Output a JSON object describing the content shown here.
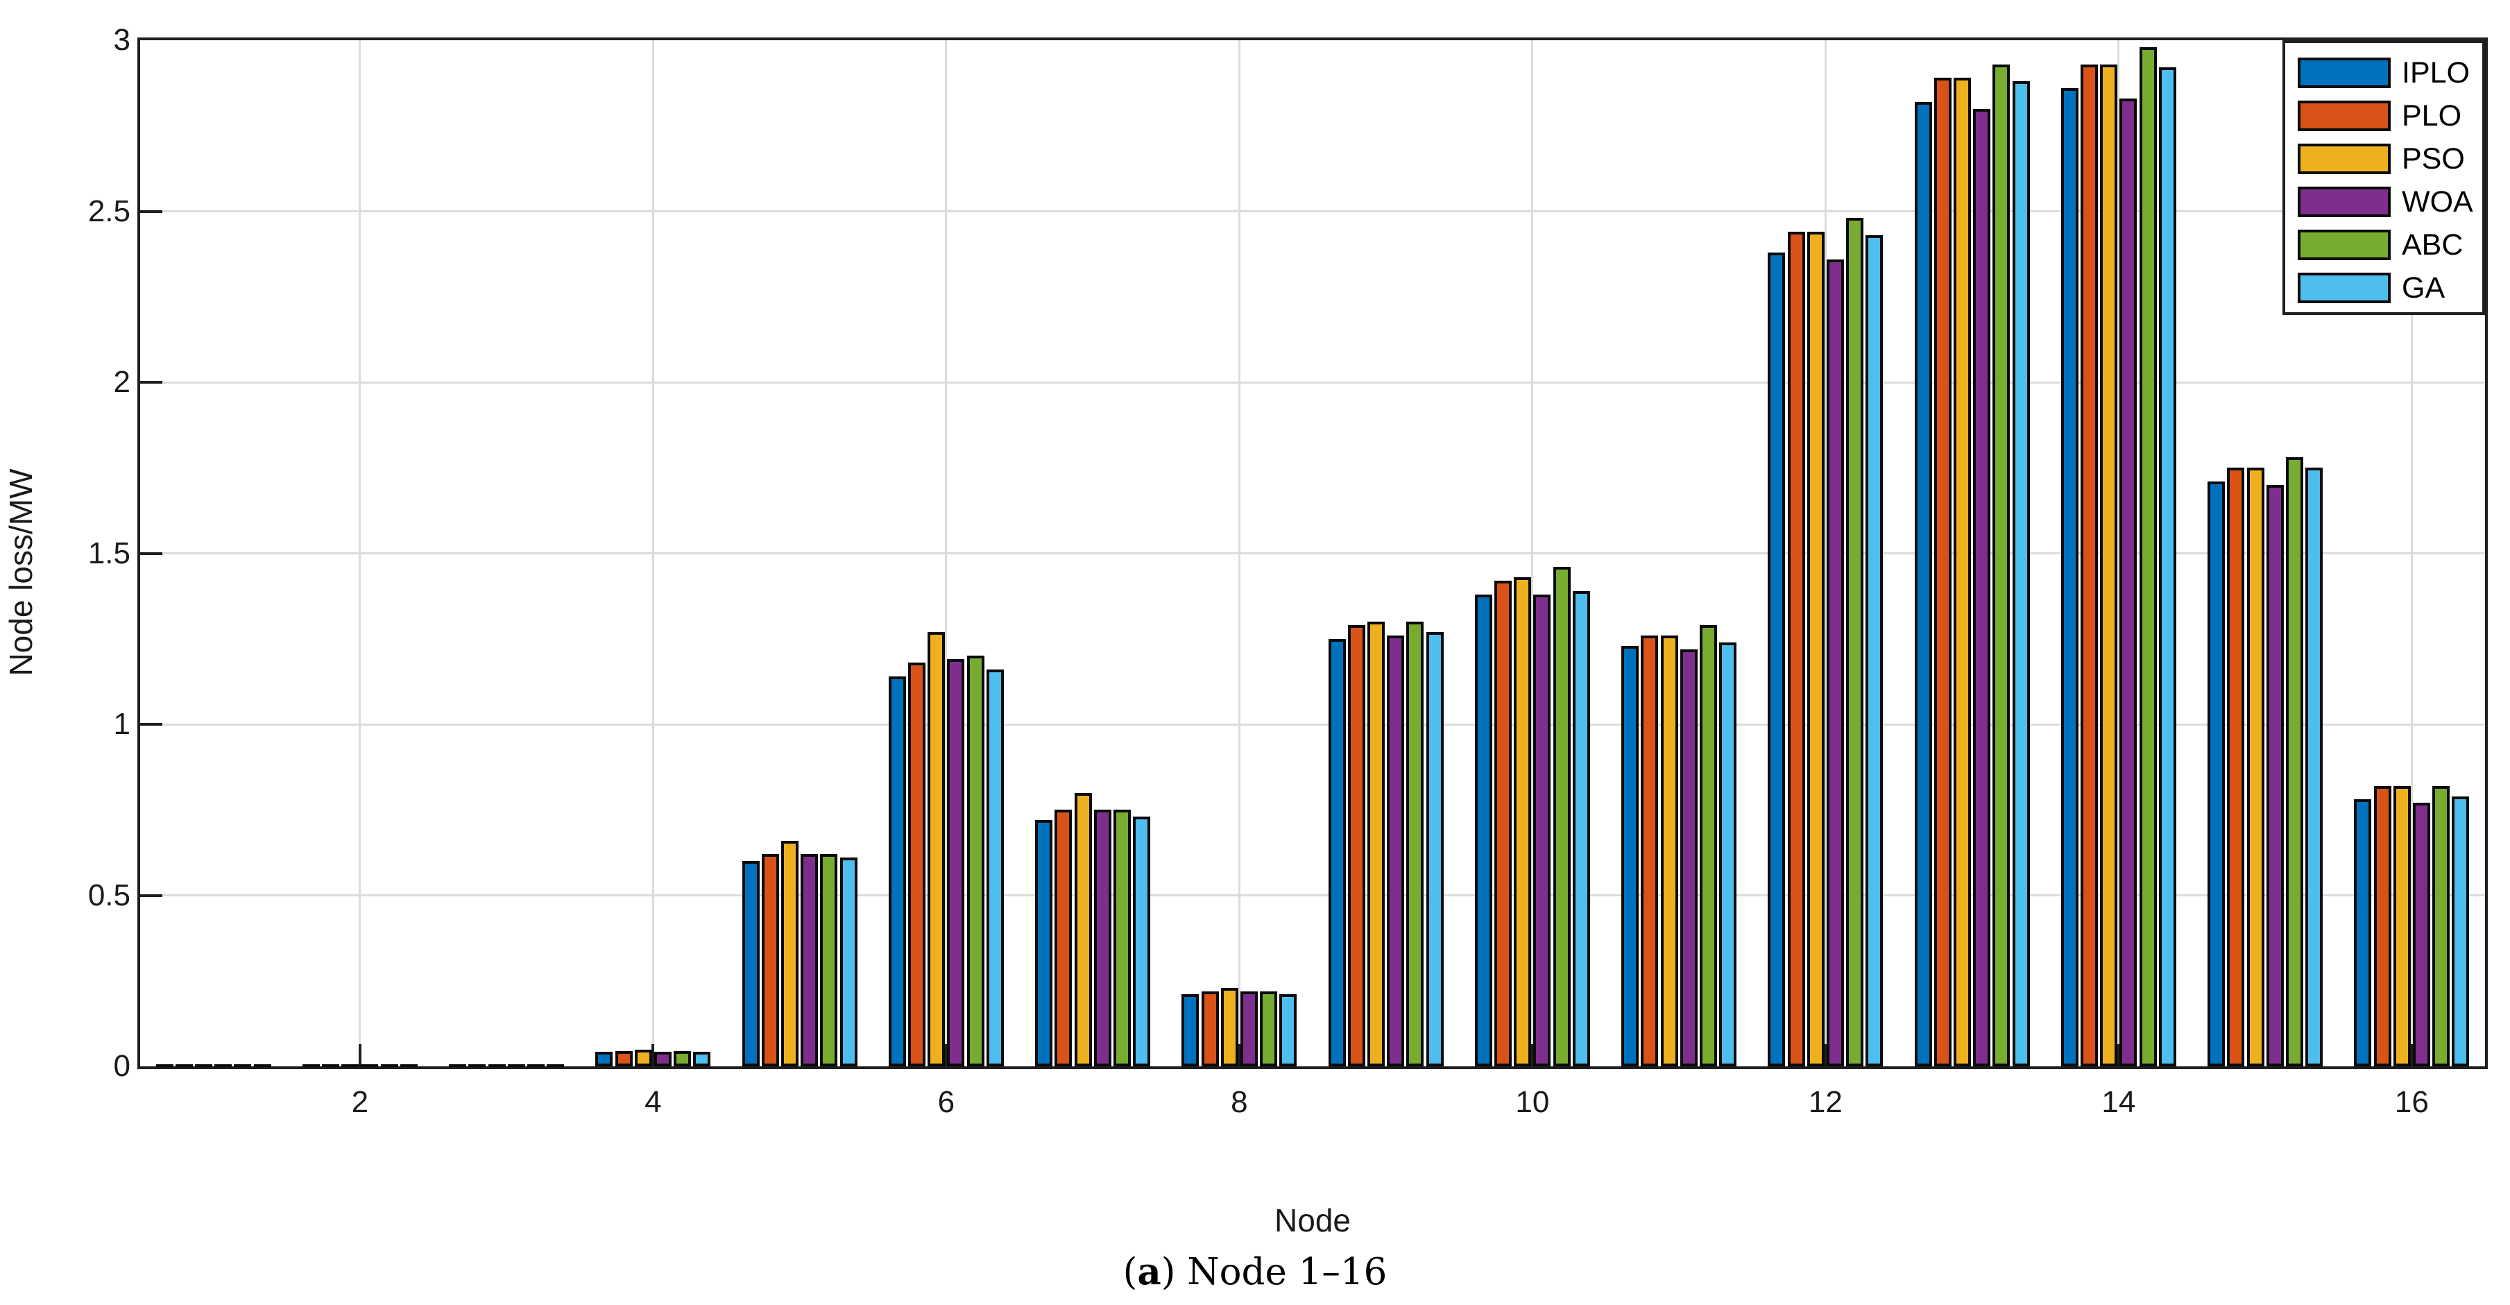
{
  "figure": {
    "background": "#ffffff",
    "caption": {
      "open": "(",
      "label": "a",
      "rest": ") Node 1–16"
    }
  },
  "chart_data": {
    "type": "bar",
    "title": "",
    "xlabel": "Node",
    "ylabel": "Node loss/MW",
    "categories": [
      1,
      2,
      3,
      4,
      5,
      6,
      7,
      8,
      9,
      10,
      11,
      12,
      13,
      14,
      15,
      16
    ],
    "xlim": [
      0.5,
      16.5
    ],
    "ylim": [
      0,
      3
    ],
    "yticks": [
      0,
      0.5,
      1,
      1.5,
      2,
      2.5,
      3
    ],
    "ytick_labels": [
      "0",
      "0.5",
      "1",
      "1.5",
      "2",
      "2.5",
      "3"
    ],
    "xticks": [
      2,
      4,
      6,
      8,
      10,
      12,
      14,
      16
    ],
    "xtick_labels": [
      "2",
      "4",
      "6",
      "8",
      "10",
      "12",
      "14",
      "16"
    ],
    "grid": true,
    "legend_position": "northeast",
    "bar_edge_color": "#0a0a0a",
    "series": [
      {
        "name": "IPLO",
        "color": "#0072BD",
        "values": [
          0.005,
          0.004,
          0.005,
          0.042,
          0.6,
          1.14,
          0.72,
          0.21,
          1.25,
          1.38,
          1.23,
          2.38,
          2.82,
          2.86,
          1.71,
          0.78
        ]
      },
      {
        "name": "PLO",
        "color": "#D95319",
        "values": [
          0.005,
          0.004,
          0.005,
          0.044,
          0.62,
          1.18,
          0.75,
          0.22,
          1.29,
          1.42,
          1.26,
          2.44,
          2.89,
          2.93,
          1.75,
          0.82
        ]
      },
      {
        "name": "PSO",
        "color": "#EDB120",
        "values": [
          0.005,
          0.004,
          0.005,
          0.048,
          0.66,
          1.27,
          0.8,
          0.23,
          1.3,
          1.43,
          1.26,
          2.44,
          2.89,
          2.93,
          1.75,
          0.82
        ]
      },
      {
        "name": "WOA",
        "color": "#7E2F8E",
        "values": [
          0.005,
          0.004,
          0.005,
          0.042,
          0.62,
          1.19,
          0.75,
          0.22,
          1.26,
          1.38,
          1.22,
          2.36,
          2.8,
          2.83,
          1.7,
          0.77
        ]
      },
      {
        "name": "ABC",
        "color": "#77AC30",
        "values": [
          0.005,
          0.004,
          0.005,
          0.044,
          0.62,
          1.2,
          0.75,
          0.22,
          1.3,
          1.46,
          1.29,
          2.48,
          2.93,
          2.98,
          1.78,
          0.82
        ]
      },
      {
        "name": "GA",
        "color": "#4DBEEE",
        "values": [
          0.005,
          0.004,
          0.005,
          0.042,
          0.61,
          1.16,
          0.73,
          0.21,
          1.27,
          1.39,
          1.24,
          2.43,
          2.88,
          2.92,
          1.75,
          0.79
        ]
      }
    ]
  }
}
